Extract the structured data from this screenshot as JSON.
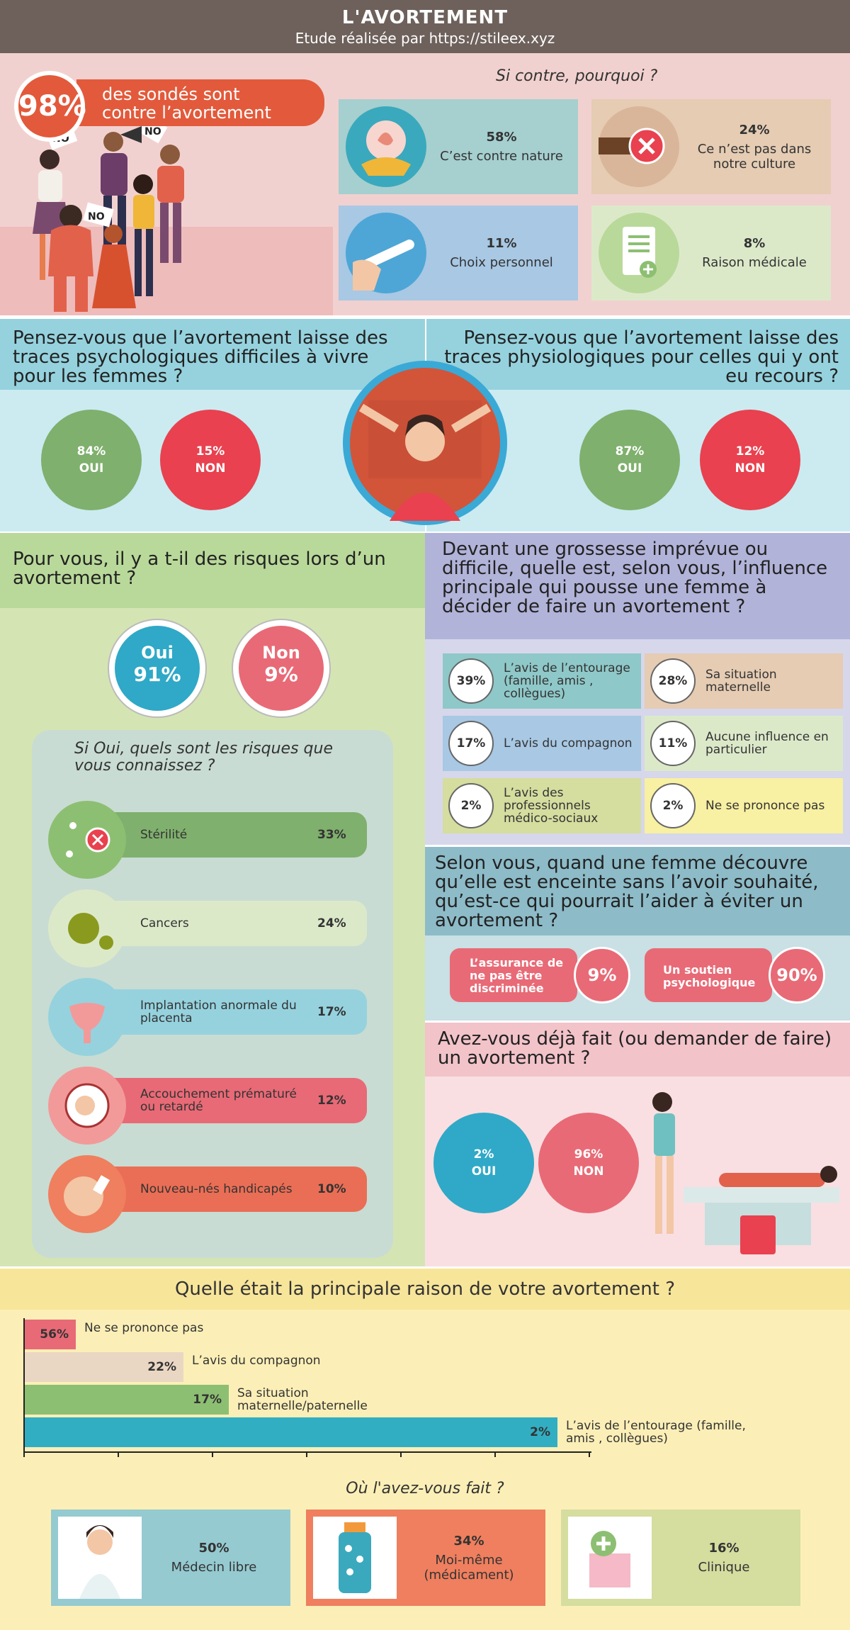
{
  "header": {
    "title": "L'AVORTEMENT",
    "subtitle": "Etude réalisée par https://stileex.xyz"
  },
  "contre": {
    "pct": "98%",
    "text_line1": "des sondés sont",
    "text_line2": "contre l’avortement",
    "sign_text": "NO"
  },
  "why": {
    "title": "Si contre, pourquoi ?",
    "items": [
      {
        "pct": "58%",
        "label": "C’est contre nature"
      },
      {
        "pct": "24%",
        "label": "Ce n’est pas dans notre culture"
      },
      {
        "pct": "11%",
        "label": "Choix personnel"
      },
      {
        "pct": "8%",
        "label": "Raison médicale"
      }
    ]
  },
  "psy": {
    "question": "Pensez-vous que l’avortement laisse des traces psychologiques difficiles à vivre pour les femmes ?",
    "yes_pct": "84%",
    "yes": "OUI",
    "no_pct": "15%",
    "no": "NON"
  },
  "phy": {
    "question": "Pensez-vous que l’avortement laisse des traces physiologiques pour celles qui y ont eu recours ?",
    "yes_pct": "87%",
    "yes": "OUI",
    "no_pct": "12%",
    "no": "NON"
  },
  "risks": {
    "question": "Pour vous, il y a t-il des risques lors d’un avortement ?",
    "yes_label": "Oui",
    "yes_pct": "91%",
    "no_label": "Non",
    "no_pct": "9%",
    "sub": "Si Oui, quels sont les risques que vous connaissez ?",
    "items": [
      {
        "label": "Stérilité",
        "pct": "33%"
      },
      {
        "label": "Cancers",
        "pct": "24%"
      },
      {
        "label": "Implantation anormale du placenta",
        "pct": "17%"
      },
      {
        "label": "Accouchement prématuré ou retardé",
        "pct": "12%"
      },
      {
        "label": "Nouveau-nés handicapés",
        "pct": "10%"
      }
    ]
  },
  "influence": {
    "question": "Devant une grossesse imprévue ou difficile, quelle est, selon vous, l’influence principale qui pousse une femme à décider de faire un avortement ?",
    "items": [
      {
        "pct": "39%",
        "label": "L’avis de l’entourage (famille, amis , collègues)"
      },
      {
        "pct": "28%",
        "label": "Sa situation maternelle"
      },
      {
        "pct": "17%",
        "label": "L’avis du compagnon"
      },
      {
        "pct": "11%",
        "label": "Aucune influence en particulier"
      },
      {
        "pct": "2%",
        "label": "L’avis des professionnels médico-sociaux"
      },
      {
        "pct": "2%",
        "label": "Ne se prononce pas"
      }
    ]
  },
  "help": {
    "question": "Selon vous, quand une femme découvre qu’elle est enceinte sans l’avoir souhaité, qu’est-ce qui pourrait l’aider à éviter un avortement ?",
    "items": [
      {
        "label": "L’assurance de ne pas être discriminée",
        "pct": "9%"
      },
      {
        "label": "Un soutien psychologique",
        "pct": "90%"
      }
    ]
  },
  "done": {
    "question": "Avez-vous déjà fait (ou demander de faire) un avortement ?",
    "yes_pct": "2%",
    "yes": "OUI",
    "no_pct": "96%",
    "no": "NON"
  },
  "reason": {
    "question": "Quelle était la principale raison de votre avortement ?",
    "items": [
      {
        "pct": "56%",
        "label": "Ne se prononce pas",
        "color": "#e86a76",
        "fraction": 0.09
      },
      {
        "pct": "22%",
        "label": "L’avis du compagnon",
        "color": "#ead7c3",
        "fraction": 0.28
      },
      {
        "pct": "17%",
        "label": "Sa situation maternelle/paternelle",
        "color": "#8dbf72",
        "fraction": 0.36
      },
      {
        "pct": "2%",
        "label": "L’avis de l’entourage (famille, amis , collègues)",
        "color": "#32aec3",
        "fraction": 0.94
      }
    ]
  },
  "where": {
    "question": "Où l'avez-vous fait ?",
    "items": [
      {
        "pct": "50%",
        "label": "Médecin libre"
      },
      {
        "pct": "34%",
        "label": "Moi-même (médicament)"
      },
      {
        "pct": "16%",
        "label": "Clinique"
      }
    ]
  }
}
